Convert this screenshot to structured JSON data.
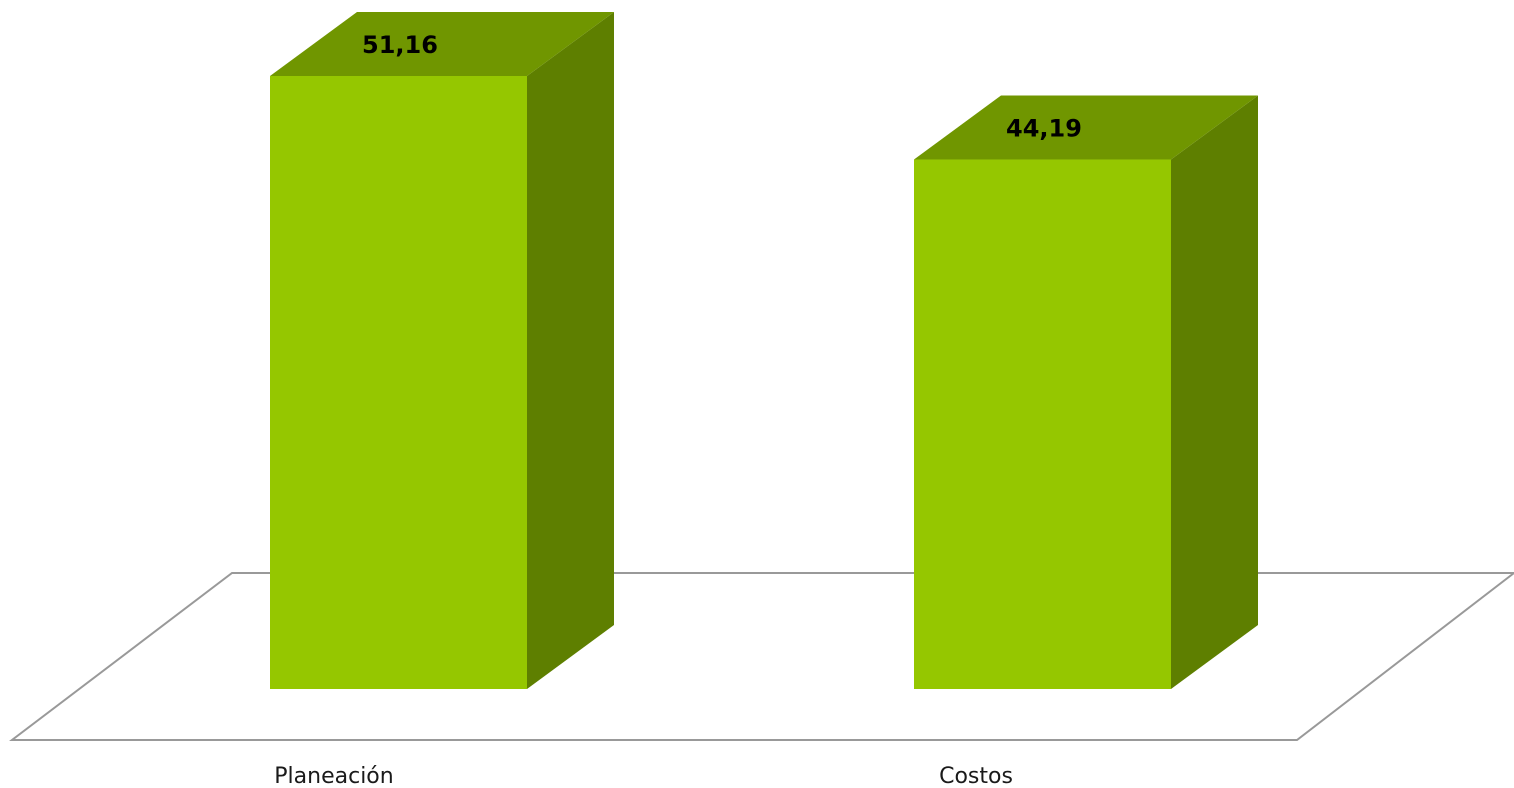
{
  "chart_data": {
    "type": "bar",
    "three_d": true,
    "categories": [
      "Planeación",
      "Costos"
    ],
    "values": [
      51.16,
      44.19
    ],
    "value_labels": [
      "51,16",
      "44,19"
    ],
    "title": "",
    "xlabel": "",
    "ylabel": "",
    "grid": false,
    "legend": "none",
    "colors": {
      "bar_front": "#95c700",
      "bar_top": "#709600",
      "bar_side": "#5e7f00",
      "floor_line": "#999999"
    }
  }
}
